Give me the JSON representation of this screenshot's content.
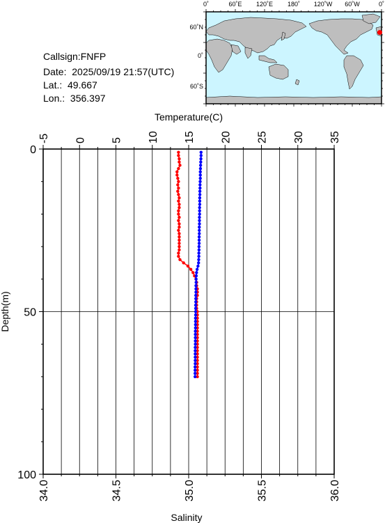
{
  "info": {
    "callsign": "Callsign:FNFP",
    "date": "Date:  2025/09/19 21:57(UTC)",
    "lat": "Lat.:  49.667",
    "lon": "Lon.:  356.397"
  },
  "map": {
    "top_labels": [
      "0˚",
      "60˚E",
      "120˚E",
      "180˚",
      "120˚W",
      "60˚W",
      "0˚"
    ],
    "left_labels": [
      "60˚N",
      "0˚",
      "60˚S"
    ],
    "ocean_color": "#ccf5ff",
    "land_color": "#bebebe",
    "marker_color": "#ff0000"
  },
  "chart_data": {
    "type": "line",
    "top_axis": {
      "label": "Temperature(C)",
      "range": [
        -5,
        35
      ],
      "ticks": [
        -5,
        0,
        5,
        10,
        15,
        20,
        25,
        30,
        35
      ]
    },
    "bottom_axis": {
      "label": "Salinity",
      "range": [
        34.0,
        36.0
      ],
      "ticks": [
        "34.0",
        "34.5",
        "35.0",
        "35.5",
        "36.0"
      ]
    },
    "y_axis": {
      "label": "Depth(m)",
      "range": [
        0,
        100
      ],
      "ticks": [
        0,
        50,
        100
      ],
      "inverted": true
    },
    "grid": true,
    "series": [
      {
        "color": "#ff0000",
        "axis": "top",
        "depth": [
          1,
          2,
          3,
          4,
          5,
          6,
          7,
          8,
          9,
          10,
          11,
          12,
          13,
          14,
          15,
          16,
          17,
          18,
          19,
          20,
          21,
          22,
          23,
          24,
          25,
          26,
          27,
          28,
          29,
          30,
          31,
          32,
          33,
          34,
          35,
          36,
          37,
          38,
          39,
          40,
          41,
          42,
          43,
          44,
          45,
          46,
          47,
          48,
          49,
          50,
          51,
          52,
          53,
          54,
          55,
          56,
          57,
          58,
          59,
          60,
          61,
          62,
          63,
          64,
          65,
          66,
          67,
          68,
          69,
          70
        ],
        "values": [
          13.6,
          13.6,
          13.7,
          13.7,
          13.8,
          13.6,
          13.4,
          13.4,
          13.5,
          13.6,
          13.5,
          13.6,
          13.5,
          13.6,
          13.7,
          13.6,
          13.7,
          13.7,
          13.6,
          13.6,
          13.7,
          13.6,
          13.7,
          13.7,
          13.6,
          13.7,
          13.7,
          13.7,
          13.7,
          13.7,
          13.7,
          13.6,
          13.6,
          13.8,
          14.3,
          14.9,
          15.3,
          15.6,
          15.8,
          16.0,
          16.1,
          16.1,
          16.2,
          16.2,
          16.2,
          16.1,
          16.1,
          16.1,
          16.1,
          16.2,
          16.2,
          16.2,
          16.2,
          16.2,
          16.2,
          16.2,
          16.2,
          16.2,
          16.2,
          16.2,
          16.2,
          16.2,
          16.2,
          16.2,
          16.2,
          16.2,
          16.2,
          16.2,
          16.2,
          16.2
        ]
      },
      {
        "color": "#0000ff",
        "axis": "bottom",
        "depth": [
          1,
          2,
          3,
          4,
          5,
          6,
          7,
          8,
          9,
          10,
          11,
          12,
          13,
          14,
          15,
          16,
          17,
          18,
          19,
          20,
          21,
          22,
          23,
          24,
          25,
          26,
          27,
          28,
          29,
          30,
          31,
          32,
          33,
          34,
          35,
          36,
          37,
          38,
          39,
          40,
          41,
          42,
          43,
          44,
          45,
          46,
          47,
          48,
          49,
          50,
          51,
          52,
          53,
          54,
          55,
          56,
          57,
          58,
          59,
          60,
          61,
          62,
          63,
          64,
          65,
          66,
          67,
          68,
          69,
          70
        ],
        "values": [
          35.085,
          35.085,
          35.084,
          35.083,
          35.082,
          35.081,
          35.08,
          35.08,
          35.08,
          35.079,
          35.078,
          35.078,
          35.077,
          35.077,
          35.076,
          35.076,
          35.076,
          35.075,
          35.075,
          35.075,
          35.074,
          35.074,
          35.074,
          35.073,
          35.073,
          35.073,
          35.072,
          35.072,
          35.072,
          35.071,
          35.071,
          35.07,
          35.07,
          35.069,
          35.068,
          35.064,
          35.058,
          35.054,
          35.052,
          35.051,
          35.051,
          35.05,
          35.05,
          35.05,
          35.049,
          35.049,
          35.049,
          35.048,
          35.048,
          35.048,
          35.048,
          35.047,
          35.047,
          35.047,
          35.047,
          35.046,
          35.046,
          35.046,
          35.046,
          35.046,
          35.045,
          35.045,
          35.045,
          35.045,
          35.045,
          35.045,
          35.044,
          35.044,
          35.044,
          35.044
        ]
      }
    ]
  }
}
